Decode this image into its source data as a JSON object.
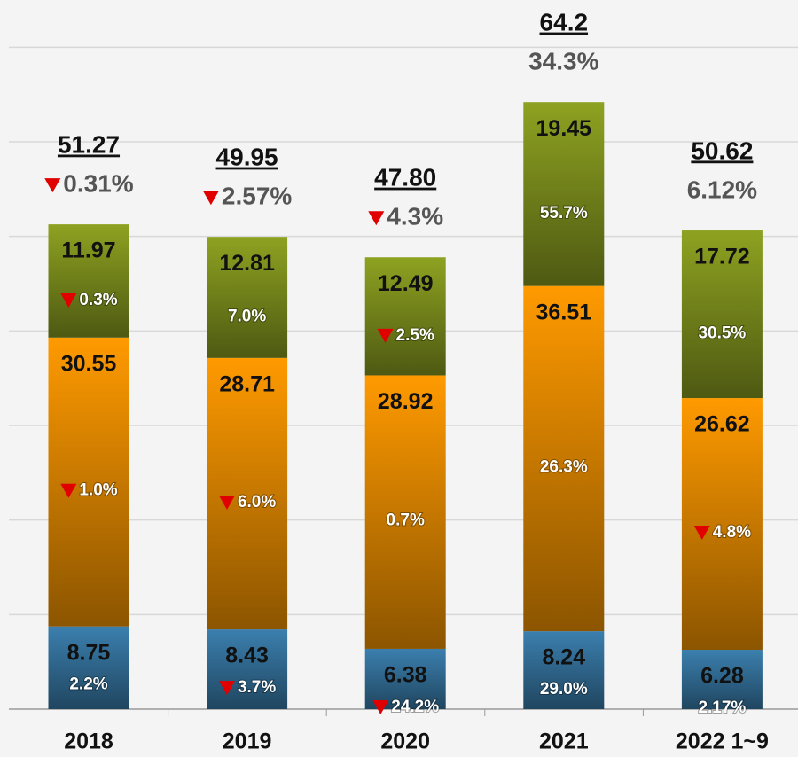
{
  "chart_data": {
    "type": "stacked_bar",
    "categories": [
      "2018",
      "2019",
      "2020",
      "2021",
      "2022 1~9"
    ],
    "ylim": [
      0,
      75
    ],
    "yticks": [
      0,
      10,
      20,
      30,
      40,
      50,
      60,
      70
    ],
    "grid": true,
    "series": [
      {
        "color": "#3b7fae",
        "values": [
          8.75,
          8.43,
          6.38,
          8.24,
          6.28
        ],
        "change_values": [
          2.2,
          -3.7,
          -24.2,
          29.0,
          2.17
        ],
        "change_labels": [
          "2.2%",
          "3.7%",
          "24.2%",
          "29.0%",
          "2.17%"
        ]
      },
      {
        "color": "#ff9a00",
        "values": [
          30.55,
          28.71,
          28.92,
          36.51,
          26.62
        ],
        "change_values": [
          -1.0,
          -6.0,
          0.7,
          26.3,
          -4.8
        ],
        "change_labels": [
          "1.0%",
          "6.0%",
          "0.7%",
          "26.3%",
          "4.8%"
        ]
      },
      {
        "color": "#8ea221",
        "values": [
          11.97,
          12.81,
          12.49,
          19.45,
          17.72
        ],
        "change_values": [
          -0.3,
          7.0,
          -2.5,
          55.7,
          30.5
        ],
        "change_labels": [
          "0.3%",
          "7.0%",
          "2.5%",
          "55.7%",
          "30.5%"
        ]
      }
    ],
    "totals": [
      51.27,
      49.95,
      47.8,
      64.2,
      50.62
    ],
    "total_labels": [
      "51.27",
      "49.95",
      "47.80",
      "64.2",
      "50.62"
    ],
    "total_change_values": [
      -0.31,
      -2.57,
      -4.3,
      34.3,
      6.12
    ],
    "total_change_labels": [
      "0.31%",
      "2.57%",
      "4.3%",
      "34.3%",
      "6.12%"
    ]
  }
}
